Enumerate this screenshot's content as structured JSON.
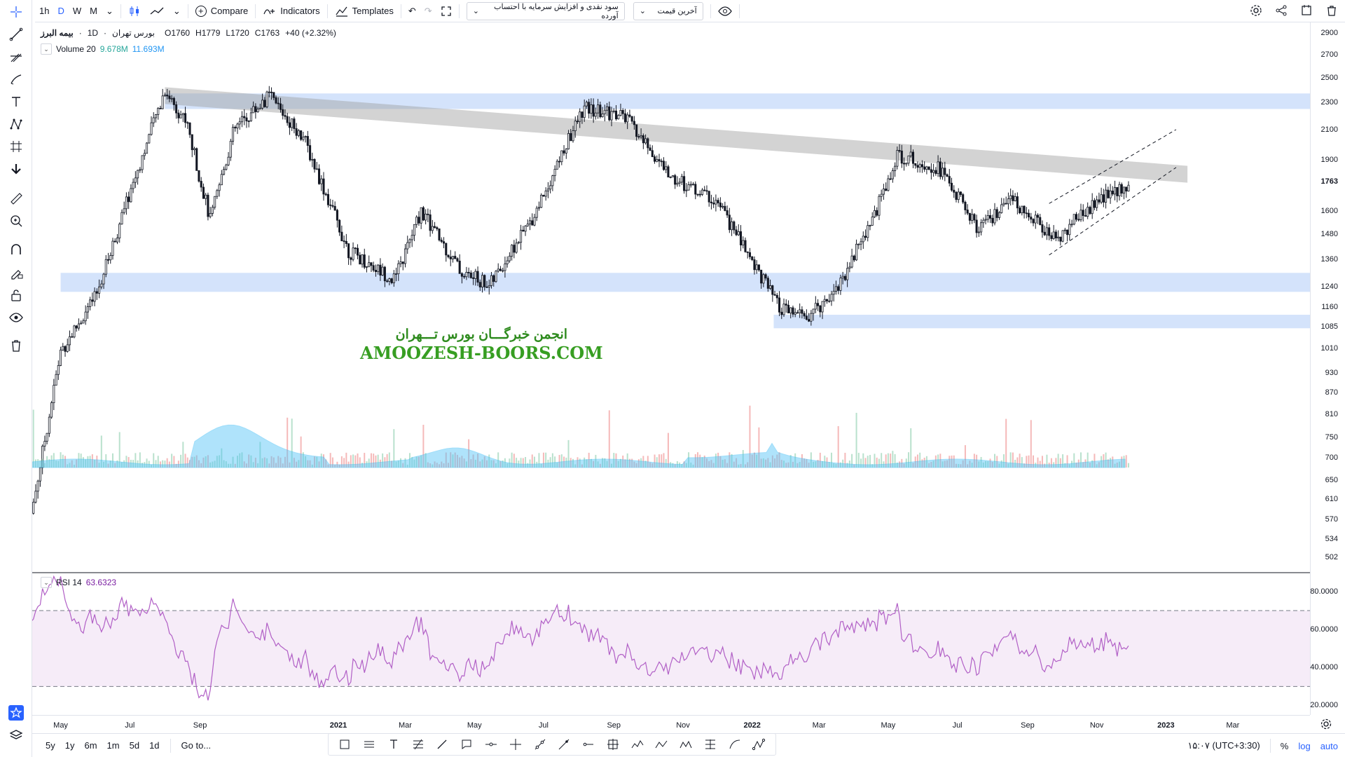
{
  "toolbar": {
    "intervals": [
      "1h",
      "D",
      "W",
      "M"
    ],
    "active_interval": "D",
    "compare_label": "Compare",
    "indicators_label": "Indicators",
    "templates_label": "Templates",
    "dividend_select": "سود نقدی و افزایش سرمایه با احتساب آورده",
    "price_select": "آخرین قیمت"
  },
  "legend": {
    "symbol": "بیمه البرز",
    "interval": "1D",
    "exchange": "بورس تهران",
    "open": "O1760",
    "high": "H1779",
    "low": "L1720",
    "close": "C1763",
    "change": "+40 (+2.32%)"
  },
  "volume_legend": {
    "name": "Volume 20",
    "v1": "9.678M",
    "v2": "11.693M"
  },
  "rsi_legend": {
    "name": "RSI 14",
    "value": "63.6323"
  },
  "watermark": {
    "fa": "انجمن خبرگـــان بورس تـــهران",
    "en": "AMOOZESH-BOORS.COM"
  },
  "price_axis": [
    "2900",
    "2700",
    "2500",
    "2300",
    "2100",
    "1900",
    "1763",
    "1600",
    "1480",
    "1360",
    "1240",
    "1160",
    "1085",
    "1010",
    "930",
    "870",
    "810",
    "750",
    "700",
    "650",
    "610",
    "570",
    "534",
    "502"
  ],
  "last_price": "1763",
  "rsi_axis": [
    "80.0000",
    "60.0000",
    "40.0000",
    "20.0000"
  ],
  "time_axis": [
    "May",
    "Jul",
    "Sep",
    "2021",
    "Mar",
    "May",
    "Jul",
    "Sep",
    "Nov",
    "2022",
    "Mar",
    "May",
    "Jul",
    "Sep",
    "Nov",
    "2023",
    "Mar"
  ],
  "bottom": {
    "ranges": [
      "5y",
      "1y",
      "6m",
      "1m",
      "5d",
      "1d"
    ],
    "goto": "Go to...",
    "time": "۱۵:۰۷ (UTC+3:30)",
    "percent": "%",
    "log": "log",
    "auto": "auto"
  },
  "colors": {
    "accent": "#2962ff",
    "up": "#a8d9c0",
    "down": "#f3a7a7",
    "rsi": "#b15fc6",
    "band": "#cfe0fb"
  },
  "chart_data": {
    "type": "candlestick",
    "title": "",
    "y_scale": "log",
    "ylim": [
      480,
      2950
    ],
    "rsi_ylim": [
      15,
      90
    ],
    "rsi_levels": [
      70,
      30
    ],
    "price_keypoints": [
      [
        "2020-04-01",
        530
      ],
      [
        "2020-05-01",
        1000
      ],
      [
        "2020-06-01",
        1200
      ],
      [
        "2020-07-01",
        1700
      ],
      [
        "2020-08-01",
        2400
      ],
      [
        "2020-08-20",
        2150
      ],
      [
        "2020-09-10",
        1550
      ],
      [
        "2020-10-01",
        2100
      ],
      [
        "2020-11-01",
        2350
      ],
      [
        "2020-12-01",
        2050
      ],
      [
        "2021-01-10",
        1400
      ],
      [
        "2021-02-20",
        1270
      ],
      [
        "2021-03-15",
        1600
      ],
      [
        "2021-04-20",
        1300
      ],
      [
        "2021-05-15",
        1250
      ],
      [
        "2021-06-20",
        1550
      ],
      [
        "2021-08-05",
        2250
      ],
      [
        "2021-09-10",
        2200
      ],
      [
        "2021-10-20",
        1800
      ],
      [
        "2021-12-01",
        1650
      ],
      [
        "2022-01-10",
        1280
      ],
      [
        "2022-01-25",
        1150
      ],
      [
        "2022-02-20",
        1120
      ],
      [
        "2022-03-20",
        1260
      ],
      [
        "2022-04-20",
        1600
      ],
      [
        "2022-05-10",
        1930
      ],
      [
        "2022-06-15",
        1850
      ],
      [
        "2022-07-20",
        1500
      ],
      [
        "2022-08-20",
        1660
      ],
      [
        "2022-09-25",
        1450
      ],
      [
        "2022-10-25",
        1620
      ],
      [
        "2022-11-30",
        1763
      ]
    ],
    "resistance_zone": [
      2250,
      2370
    ],
    "support_zones": [
      [
        1220,
        1300
      ],
      [
        1080,
        1130
      ]
    ],
    "trendline_band": {
      "from": [
        "2020-08-01",
        2420
      ],
      "to": [
        "2023-01-20",
        1860
      ]
    },
    "channel": {
      "upper_from": [
        "2022-09-20",
        1640
      ],
      "upper_to": [
        "2023-01-10",
        2100
      ],
      "lower_from": [
        "2022-09-20",
        1380
      ],
      "lower_to": [
        "2023-01-10",
        1850
      ]
    }
  }
}
